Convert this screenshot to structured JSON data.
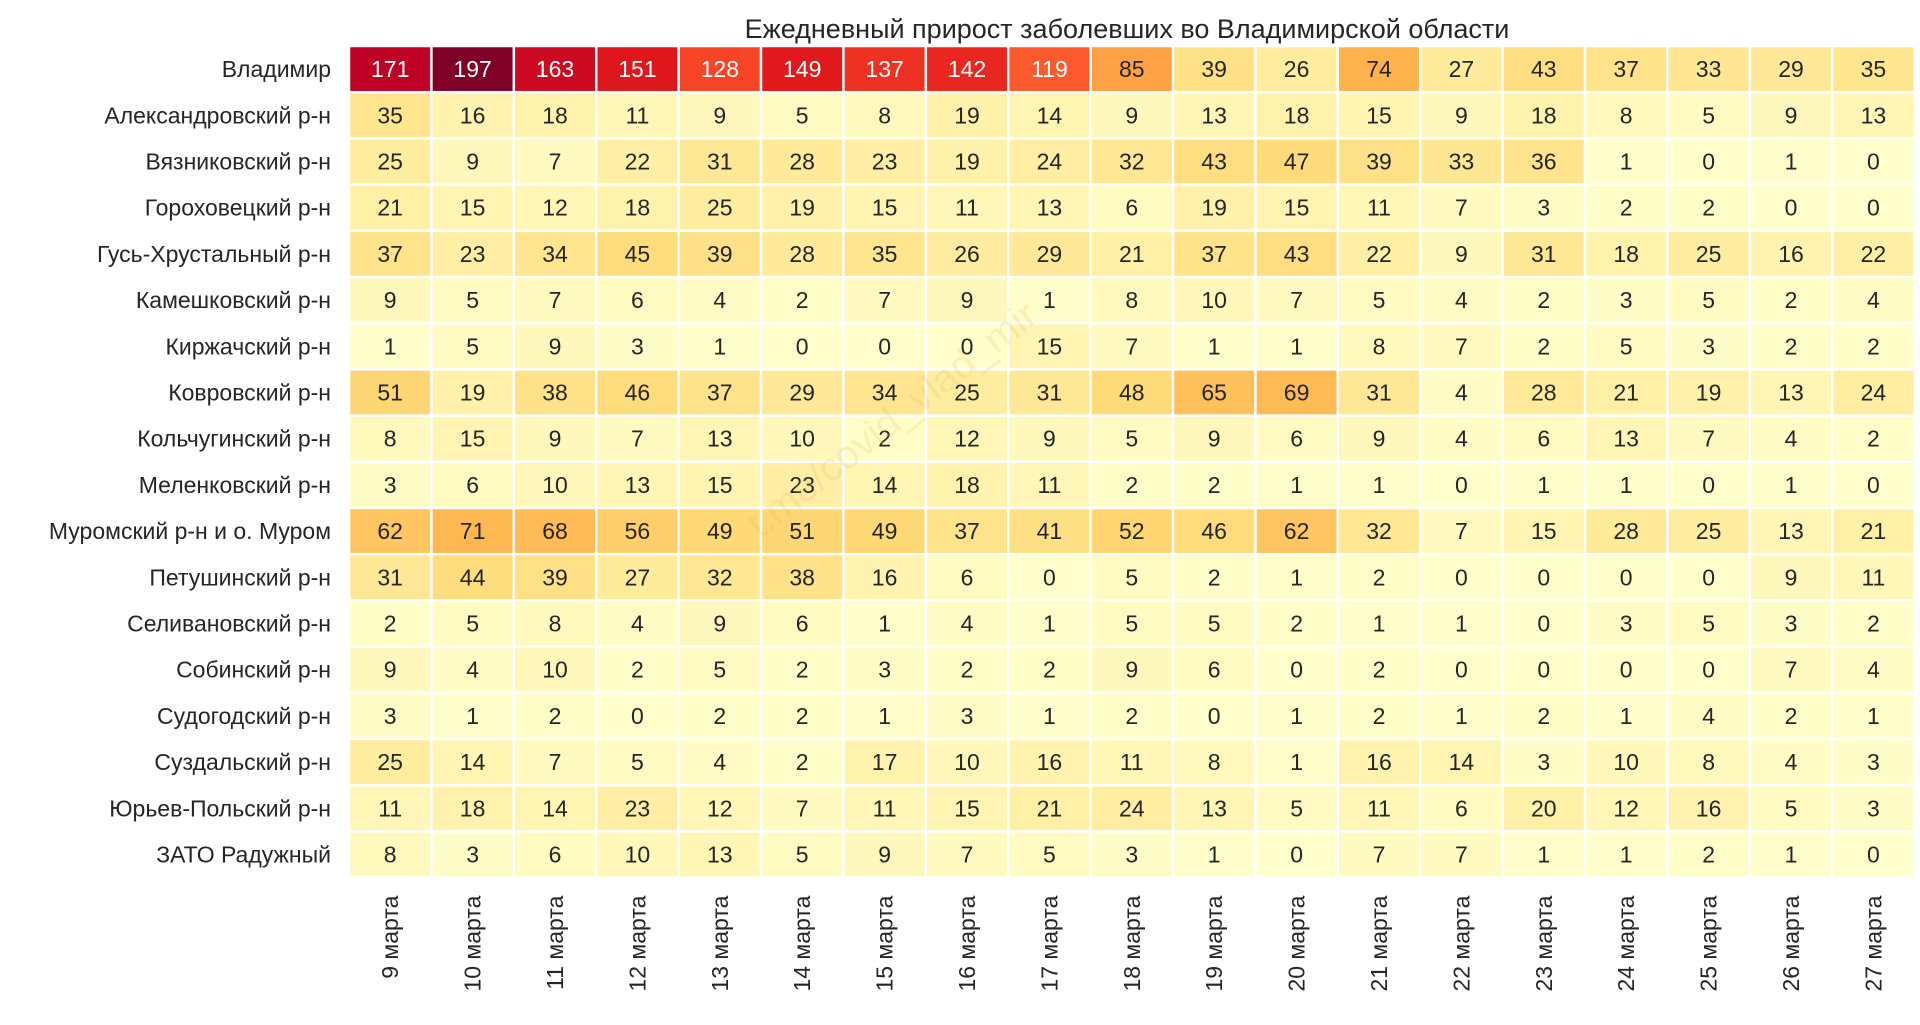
{
  "chart_data": {
    "type": "heatmap",
    "title": "Ежедневный прирост заболевших во Владимирской области",
    "watermark": "t.me/covid_vlad_mir",
    "colormap": "YlOrRd",
    "vmin": 0,
    "vmax": 197,
    "rows": [
      "Владимир",
      "Александровский р-н",
      "Вязниковский р-н",
      "Гороховецкий р-н",
      "Гусь-Хрустальный р-н",
      "Камешковский р-н",
      "Киржачский р-н",
      "Ковровский р-н",
      "Кольчугинский р-н",
      "Меленковский р-н",
      "Муромский р-н и о. Муром",
      "Петушинский р-н",
      "Селивановский р-н",
      "Собинский р-н",
      "Судогодский р-н",
      "Суздальский р-н",
      "Юрьев-Польский р-н",
      "ЗАТО Радужный"
    ],
    "columns": [
      "9 марта",
      "10 марта",
      "11 марта",
      "12 марта",
      "13 марта",
      "14 марта",
      "15 марта",
      "16 марта",
      "17 марта",
      "18 марта",
      "19 марта",
      "20 марта",
      "21 марта",
      "22 марта",
      "23 марта",
      "24 марта",
      "25 марта",
      "26 марта",
      "27 марта"
    ],
    "values": [
      [
        171,
        197,
        163,
        151,
        128,
        149,
        137,
        142,
        119,
        85,
        39,
        26,
        74,
        27,
        43,
        37,
        33,
        29,
        35
      ],
      [
        35,
        16,
        18,
        11,
        9,
        5,
        8,
        19,
        14,
        9,
        13,
        18,
        15,
        9,
        18,
        8,
        5,
        9,
        13
      ],
      [
        25,
        9,
        7,
        22,
        31,
        28,
        23,
        19,
        24,
        32,
        43,
        47,
        39,
        33,
        36,
        1,
        0,
        1,
        0
      ],
      [
        21,
        15,
        12,
        18,
        25,
        19,
        15,
        11,
        13,
        6,
        19,
        15,
        11,
        7,
        3,
        2,
        2,
        0,
        0
      ],
      [
        37,
        23,
        34,
        45,
        39,
        28,
        35,
        26,
        29,
        21,
        37,
        43,
        22,
        9,
        31,
        18,
        25,
        16,
        22
      ],
      [
        9,
        5,
        7,
        6,
        4,
        2,
        7,
        9,
        1,
        8,
        10,
        7,
        5,
        4,
        2,
        3,
        5,
        2,
        4
      ],
      [
        1,
        5,
        9,
        3,
        1,
        0,
        0,
        0,
        15,
        7,
        1,
        1,
        8,
        7,
        2,
        5,
        3,
        2,
        2
      ],
      [
        51,
        19,
        38,
        46,
        37,
        29,
        34,
        25,
        31,
        48,
        65,
        69,
        31,
        4,
        28,
        21,
        19,
        13,
        24
      ],
      [
        8,
        15,
        9,
        7,
        13,
        10,
        2,
        12,
        9,
        5,
        9,
        6,
        9,
        4,
        6,
        13,
        7,
        4,
        2
      ],
      [
        3,
        6,
        10,
        13,
        15,
        23,
        14,
        18,
        11,
        2,
        2,
        1,
        1,
        0,
        1,
        1,
        0,
        1,
        0
      ],
      [
        62,
        71,
        68,
        56,
        49,
        51,
        49,
        37,
        41,
        52,
        46,
        62,
        32,
        7,
        15,
        28,
        25,
        13,
        21
      ],
      [
        31,
        44,
        39,
        27,
        32,
        38,
        16,
        6,
        0,
        5,
        2,
        1,
        2,
        0,
        0,
        0,
        0,
        9,
        11
      ],
      [
        2,
        5,
        8,
        4,
        9,
        6,
        1,
        4,
        1,
        5,
        5,
        2,
        1,
        1,
        0,
        3,
        5,
        3,
        2
      ],
      [
        9,
        4,
        10,
        2,
        5,
        2,
        3,
        2,
        2,
        9,
        6,
        0,
        2,
        0,
        0,
        0,
        0,
        7,
        4
      ],
      [
        3,
        1,
        2,
        0,
        2,
        2,
        1,
        3,
        1,
        2,
        0,
        1,
        2,
        1,
        2,
        1,
        4,
        2,
        1
      ],
      [
        25,
        14,
        7,
        5,
        4,
        2,
        17,
        10,
        16,
        11,
        8,
        1,
        16,
        14,
        3,
        10,
        8,
        4,
        3
      ],
      [
        11,
        18,
        14,
        23,
        12,
        7,
        11,
        15,
        21,
        24,
        13,
        5,
        11,
        6,
        20,
        12,
        16,
        5,
        3
      ],
      [
        8,
        3,
        6,
        10,
        13,
        5,
        9,
        7,
        5,
        3,
        1,
        0,
        7,
        7,
        1,
        1,
        2,
        1,
        0
      ]
    ],
    "xlabel": "",
    "ylabel": "",
    "grid": false,
    "legend": "none"
  }
}
